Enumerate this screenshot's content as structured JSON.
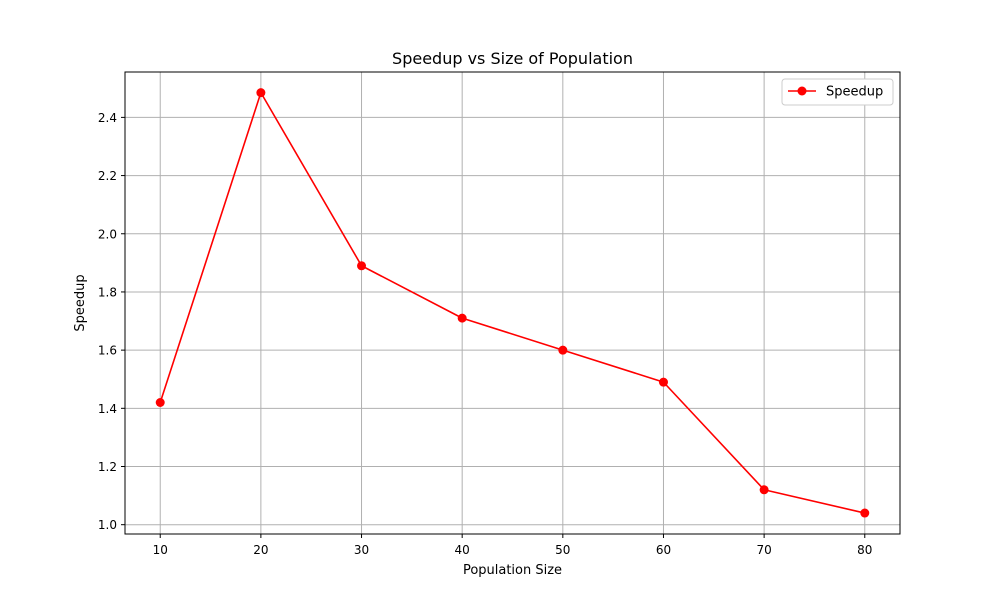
{
  "chart_data": {
    "type": "line",
    "title": "Speedup vs Size of Population",
    "xlabel": "Population Size",
    "ylabel": "Speedup",
    "x": [
      10,
      20,
      30,
      40,
      50,
      60,
      70,
      80
    ],
    "series": [
      {
        "name": "Speedup",
        "values": [
          1.42,
          2.485,
          1.89,
          1.71,
          1.6,
          1.49,
          1.12,
          1.04
        ],
        "color": "#ff0000",
        "marker": "circle"
      }
    ],
    "xlim": [
      6.5,
      83.5
    ],
    "ylim": [
      0.968,
      2.556
    ],
    "xticks": [
      10,
      20,
      30,
      40,
      50,
      60,
      70,
      80
    ],
    "yticks": [
      1.0,
      1.2,
      1.4,
      1.6,
      1.8,
      2.0,
      2.2,
      2.4
    ],
    "ytick_labels": [
      "1.0",
      "1.2",
      "1.4",
      "1.6",
      "1.8",
      "2.0",
      "2.2",
      "2.4"
    ],
    "grid": true,
    "legend_position": "top-right"
  }
}
